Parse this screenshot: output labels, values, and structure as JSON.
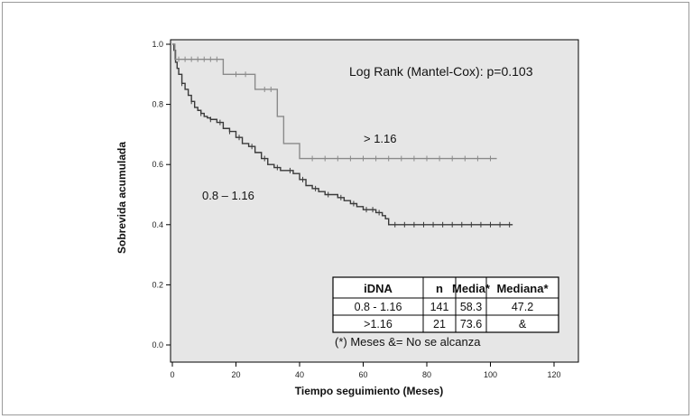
{
  "chart_data": {
    "type": "line",
    "subtype": "kaplan-meier",
    "title": "",
    "xlabel": "Tiempo seguimiento (Meses)",
    "ylabel": "Sobrevida acumulada",
    "xlim": [
      0,
      120
    ],
    "ylim": [
      0,
      1.0
    ],
    "x_ticks": [
      "0",
      "20",
      "40",
      "60",
      "80",
      "100",
      "120"
    ],
    "y_ticks": [
      "0.0",
      "0.2",
      "0.4",
      "0.6",
      "0.8",
      "1.0"
    ],
    "grid": false,
    "plot_background": "#e6e6e6",
    "series": [
      {
        "name": "0.8 – 1.16",
        "color": "#3a3a3a",
        "points": [
          [
            0,
            1.0
          ],
          [
            0.5,
            0.98
          ],
          [
            1,
            0.94
          ],
          [
            1.5,
            0.92
          ],
          [
            2,
            0.9
          ],
          [
            3,
            0.87
          ],
          [
            4,
            0.85
          ],
          [
            5,
            0.83
          ],
          [
            6,
            0.81
          ],
          [
            7,
            0.79
          ],
          [
            8,
            0.78
          ],
          [
            9,
            0.77
          ],
          [
            10,
            0.76
          ],
          [
            11,
            0.755
          ],
          [
            12,
            0.75
          ],
          [
            14,
            0.74
          ],
          [
            16,
            0.72
          ],
          [
            18,
            0.71
          ],
          [
            20,
            0.69
          ],
          [
            22,
            0.67
          ],
          [
            24,
            0.66
          ],
          [
            26,
            0.64
          ],
          [
            28,
            0.62
          ],
          [
            30,
            0.6
          ],
          [
            32,
            0.59
          ],
          [
            34,
            0.58
          ],
          [
            36,
            0.58
          ],
          [
            38,
            0.57
          ],
          [
            40,
            0.55
          ],
          [
            42,
            0.53
          ],
          [
            44,
            0.52
          ],
          [
            46,
            0.51
          ],
          [
            48,
            0.5
          ],
          [
            50,
            0.5
          ],
          [
            52,
            0.49
          ],
          [
            54,
            0.48
          ],
          [
            56,
            0.47
          ],
          [
            58,
            0.46
          ],
          [
            60,
            0.45
          ],
          [
            62,
            0.45
          ],
          [
            64,
            0.44
          ],
          [
            66,
            0.43
          ],
          [
            67,
            0.42
          ],
          [
            68,
            0.4
          ],
          [
            80,
            0.4
          ],
          [
            90,
            0.4
          ],
          [
            100,
            0.4
          ],
          [
            107,
            0.4
          ]
        ],
        "censor_x": [
          3,
          6,
          9,
          12,
          15,
          18,
          21,
          25,
          29,
          33,
          37,
          41,
          45,
          49,
          53,
          57,
          61,
          63,
          65,
          70,
          73,
          76,
          79,
          82,
          85,
          88,
          91,
          94,
          97,
          100,
          103,
          106
        ]
      },
      {
        "name": "> 1.16",
        "color": "#8a8a8a",
        "points": [
          [
            0,
            1.0
          ],
          [
            0.8,
            0.95
          ],
          [
            16,
            0.95
          ],
          [
            16,
            0.9
          ],
          [
            26,
            0.9
          ],
          [
            26,
            0.85
          ],
          [
            33,
            0.85
          ],
          [
            33,
            0.76
          ],
          [
            35,
            0.76
          ],
          [
            35,
            0.67
          ],
          [
            40,
            0.67
          ],
          [
            40,
            0.62
          ],
          [
            102,
            0.62
          ]
        ],
        "censor_x": [
          2,
          4,
          6,
          8,
          10,
          12,
          14,
          20,
          23,
          29,
          31,
          44,
          48,
          52,
          56,
          60,
          64,
          68,
          72,
          76,
          80,
          84,
          88,
          92,
          96,
          100
        ]
      }
    ],
    "annotations": [
      {
        "text": "Log Rank (Mantel-Cox):  p=0.103"
      },
      {
        "text": "> 1.16"
      },
      {
        "text": "0.8 – 1.16"
      },
      {
        "text": "(*) Meses    &= No se alcanza"
      }
    ],
    "table": {
      "headers": [
        "iDNA",
        "n",
        "Media*",
        "Mediana*"
      ],
      "rows": [
        [
          "0.8 - 1.16",
          "141",
          "58.3",
          "47.2"
        ],
        [
          ">1.16",
          "21",
          "73.6",
          "&"
        ]
      ]
    }
  }
}
